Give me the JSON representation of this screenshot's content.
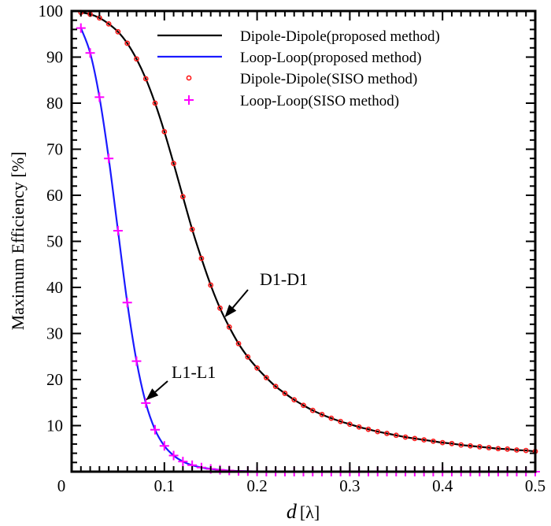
{
  "chart_data": {
    "type": "line",
    "xlabel_var": "d",
    "xlabel_unit": "[λ]",
    "ylabel": "Maximum Efficiency [%]",
    "xlim": [
      0,
      0.5
    ],
    "ylim": [
      0,
      100
    ],
    "x_ticks": [
      "0",
      "0.1",
      "0.2",
      "0.3",
      "0.4",
      "0.5"
    ],
    "y_ticks": [
      "0",
      "10",
      "20",
      "30",
      "40",
      "50",
      "60",
      "70",
      "80",
      "90",
      "100"
    ],
    "grid": false,
    "legend_position": "top-right",
    "x": [
      0.01,
      0.02,
      0.03,
      0.04,
      0.05,
      0.06,
      0.07,
      0.08,
      0.09,
      0.1,
      0.11,
      0.12,
      0.13,
      0.14,
      0.15,
      0.16,
      0.17,
      0.18,
      0.19,
      0.2,
      0.21,
      0.22,
      0.23,
      0.24,
      0.25,
      0.26,
      0.27,
      0.28,
      0.29,
      0.3,
      0.31,
      0.32,
      0.33,
      0.34,
      0.35,
      0.36,
      0.37,
      0.38,
      0.39,
      0.4,
      0.41,
      0.42,
      0.43,
      0.44,
      0.45,
      0.46,
      0.47,
      0.48,
      0.49,
      0.5
    ],
    "series": [
      {
        "name": "Dipole-Dipole(proposed method)",
        "style": "line",
        "color": "#000000",
        "values": [
          99.7,
          99.3,
          98.5,
          97.2,
          95.5,
          93.0,
          89.6,
          85.3,
          80.0,
          73.8,
          66.9,
          59.7,
          52.6,
          46.3,
          40.5,
          35.5,
          31.4,
          27.8,
          24.9,
          22.5,
          20.4,
          18.5,
          17.0,
          15.6,
          14.4,
          13.3,
          12.4,
          11.6,
          10.9,
          10.3,
          9.7,
          9.2,
          8.7,
          8.3,
          7.9,
          7.5,
          7.2,
          6.9,
          6.6,
          6.3,
          6.1,
          5.8,
          5.6,
          5.4,
          5.2,
          5.0,
          4.9,
          4.7,
          4.6,
          4.4
        ]
      },
      {
        "name": "Loop-Loop(proposed method)",
        "style": "line",
        "color": "#1a1aff",
        "values": [
          96.3,
          90.9,
          81.3,
          68.0,
          52.3,
          36.7,
          24.0,
          14.9,
          9.1,
          5.6,
          3.5,
          2.2,
          1.4,
          0.9,
          0.6,
          0.4,
          0.25,
          0.15,
          0.1,
          0.05,
          0,
          0,
          0,
          0,
          0,
          0,
          0,
          0,
          0,
          0,
          0,
          0,
          0,
          0,
          0,
          0,
          0,
          0,
          0,
          0,
          0,
          0,
          0,
          0,
          0,
          0,
          0,
          0,
          0,
          0
        ]
      },
      {
        "name": "Dipole-Dipole(SISO method)",
        "style": "circle",
        "color": "#ff1a1a",
        "values": [
          99.7,
          99.3,
          98.5,
          97.2,
          95.5,
          93.0,
          89.6,
          85.3,
          80.0,
          73.8,
          66.9,
          59.7,
          52.6,
          46.3,
          40.5,
          35.5,
          31.4,
          27.8,
          24.9,
          22.5,
          20.4,
          18.5,
          17.0,
          15.6,
          14.4,
          13.3,
          12.4,
          11.6,
          10.9,
          10.3,
          9.7,
          9.2,
          8.7,
          8.3,
          7.9,
          7.5,
          7.2,
          6.9,
          6.6,
          6.3,
          6.1,
          5.8,
          5.6,
          5.4,
          5.2,
          5.0,
          4.9,
          4.7,
          4.6,
          4.4
        ]
      },
      {
        "name": "Loop-Loop(SISO method)",
        "style": "plus",
        "color": "#ff00ff",
        "values": [
          96.3,
          90.9,
          81.3,
          68.0,
          52.3,
          36.7,
          24.0,
          14.9,
          9.1,
          5.6,
          3.5,
          2.2,
          1.4,
          0.9,
          0.6,
          0.4,
          0.25,
          0.15,
          0.1,
          0.05,
          0,
          0,
          0,
          0,
          0,
          0,
          0,
          0,
          0,
          0,
          0,
          0,
          0,
          0,
          0,
          0,
          0,
          0,
          0,
          0,
          0,
          0,
          0,
          0,
          0,
          0,
          0,
          0,
          0,
          0
        ]
      }
    ],
    "annotations": [
      {
        "text": "D1-D1",
        "points_to": [
          0.165,
          33.5
        ]
      },
      {
        "text": "L1-L1",
        "points_to": [
          0.08,
          15.5
        ]
      }
    ]
  }
}
